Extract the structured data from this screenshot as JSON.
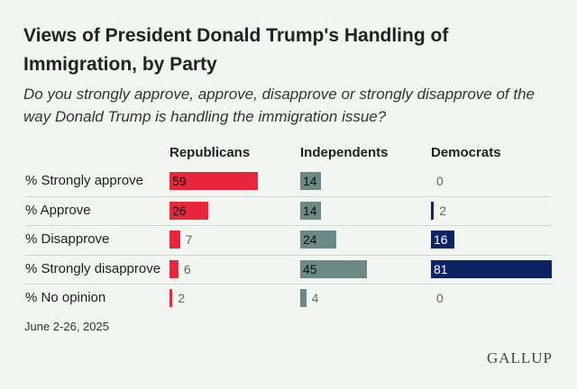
{
  "chart_data": {
    "type": "bar",
    "title": "Views of President Donald Trump's Handling of Immigration, by Party",
    "subtitle": "Do you strongly approve, approve, disapprove or strongly disapprove of the way Donald Trump is handling the immigration issue?",
    "categories": [
      "% Strongly approve",
      "% Approve",
      "% Disapprove",
      "% Strongly disapprove",
      "% No opinion"
    ],
    "series": [
      {
        "name": "Republicans",
        "values": [
          59,
          26,
          7,
          6,
          2
        ],
        "color": "#e8273d"
      },
      {
        "name": "Independents",
        "values": [
          14,
          14,
          24,
          45,
          4
        ],
        "color": "#6b8a86"
      },
      {
        "name": "Democrats",
        "values": [
          0,
          2,
          16,
          81,
          0
        ],
        "color": "#0d2366"
      }
    ],
    "xlim": [
      0,
      81
    ],
    "grid": false,
    "legend": "column-headers"
  },
  "footer": {
    "date": "June 2-26, 2025",
    "logo": "GALLUP"
  }
}
